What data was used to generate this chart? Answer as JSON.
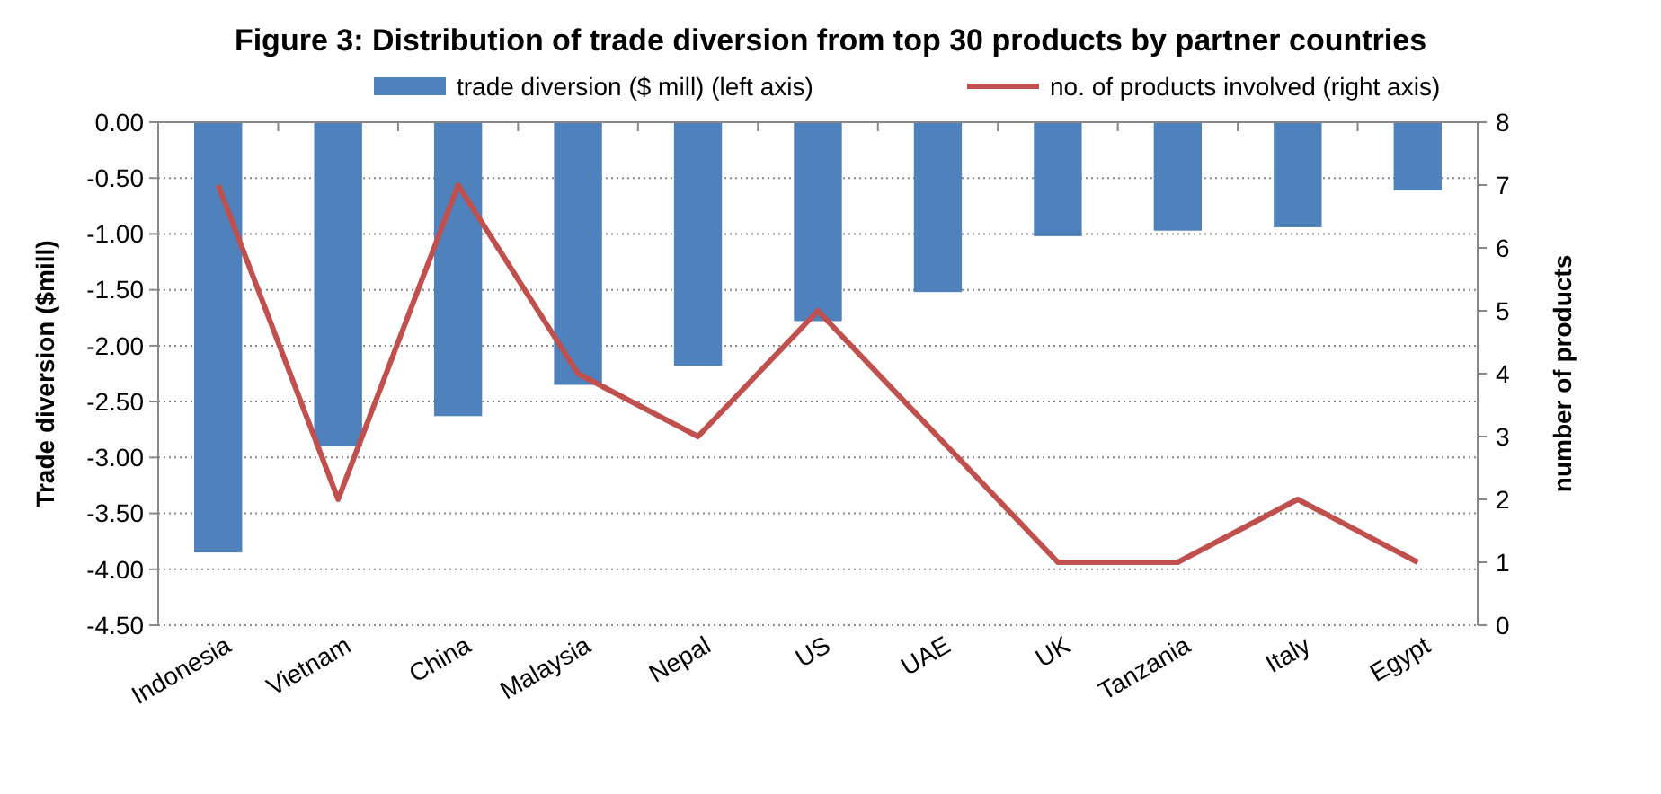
{
  "chart_data": {
    "type": "bar",
    "title": "Figure 3: Distribution of trade diversion from top 30 products by partner countries",
    "ylabel": "Trade diversion ($mill)",
    "y2label": "number of products",
    "categories": [
      "Indonesia",
      "Vietnam",
      "China",
      "Malaysia",
      "Nepal",
      "US",
      "UAE",
      "UK",
      "Tanzania",
      "Italy",
      "Egypt"
    ],
    "series": [
      {
        "name": "trade diversion ($ mill) (left axis)",
        "color": "#4f81bd",
        "values": [
          -3.85,
          -2.9,
          -2.63,
          -2.35,
          -2.18,
          -1.78,
          -1.52,
          -1.02,
          -0.97,
          -0.94,
          -0.61
        ]
      },
      {
        "name": "no. of products involved (right axis)",
        "type": "line",
        "axis": "y2",
        "color": "#c0504d",
        "values": [
          7,
          2,
          7,
          4,
          3,
          5,
          3,
          1,
          1,
          2,
          1
        ]
      }
    ],
    "ylim": [
      -4.5,
      0
    ],
    "yticks": [
      {
        "value": 0,
        "label": "0.00"
      },
      {
        "value": -0.5,
        "label": "-0.50"
      },
      {
        "value": -1,
        "label": "-1.00"
      },
      {
        "value": -1.5,
        "label": "-1.50"
      },
      {
        "value": -2,
        "label": "-2.00"
      },
      {
        "value": -2.5,
        "label": "-2.50"
      },
      {
        "value": -3,
        "label": "-3.00"
      },
      {
        "value": -3.5,
        "label": "-3.50"
      },
      {
        "value": -4,
        "label": "-4.00"
      },
      {
        "value": -4.5,
        "label": "-4.50"
      }
    ],
    "y2lim": [
      0,
      8
    ],
    "y2ticks": [
      0,
      1,
      2,
      3,
      4,
      5,
      6,
      7,
      8
    ],
    "grid": "y",
    "legend": "top",
    "marker": "none"
  }
}
